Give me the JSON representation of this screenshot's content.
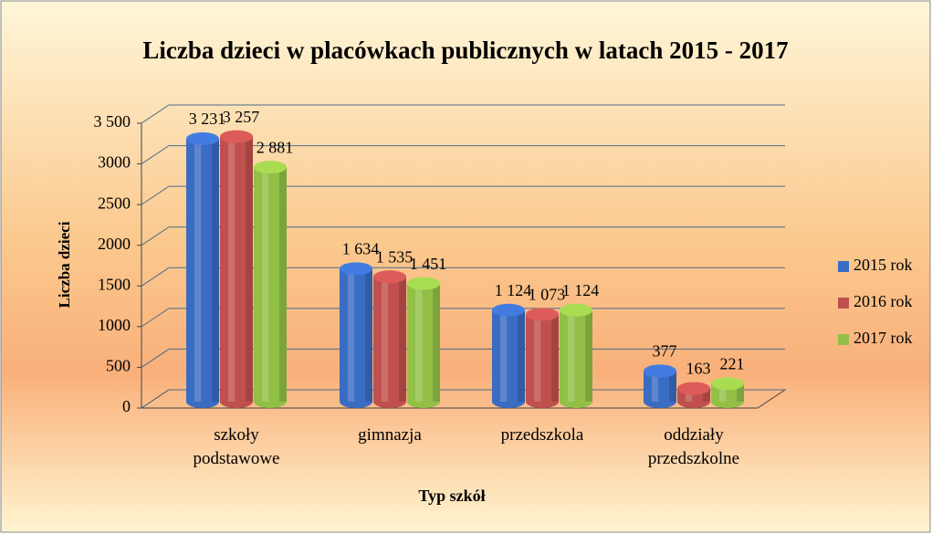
{
  "chart_data": {
    "type": "bar3d",
    "title": "Liczba dzieci w placówkach publicznych w latach 2015 - 2017",
    "x_label": "Typ szkół",
    "y_label": "Liczba dzieci",
    "categories": [
      "szkoły podstawowe",
      "gimnazja",
      "przedszkola",
      "oddziały przedszkolne"
    ],
    "series": [
      {
        "name": "2015 rok",
        "color": "#3a6cc4",
        "values": [
          3231,
          1634,
          1124,
          377
        ],
        "value_labels": [
          "3 231",
          "1 634",
          "1 124",
          "377"
        ]
      },
      {
        "name": "2016 rok",
        "color": "#c0504d",
        "values": [
          3257,
          1535,
          1073,
          163
        ],
        "value_labels": [
          "3 257",
          "1 535",
          "1 073",
          "163"
        ]
      },
      {
        "name": "2017 rok",
        "color": "#92c047",
        "values": [
          2881,
          1451,
          1124,
          221
        ],
        "value_labels": [
          "2 881",
          "1 451",
          "1 124",
          "221"
        ]
      }
    ],
    "ylim": [
      0,
      3500
    ],
    "yticks": [
      0,
      500,
      1000,
      1500,
      2000,
      2500,
      3000,
      {
        "value": 3500,
        "label": "3 500"
      }
    ],
    "grid": true,
    "legend": "right"
  }
}
